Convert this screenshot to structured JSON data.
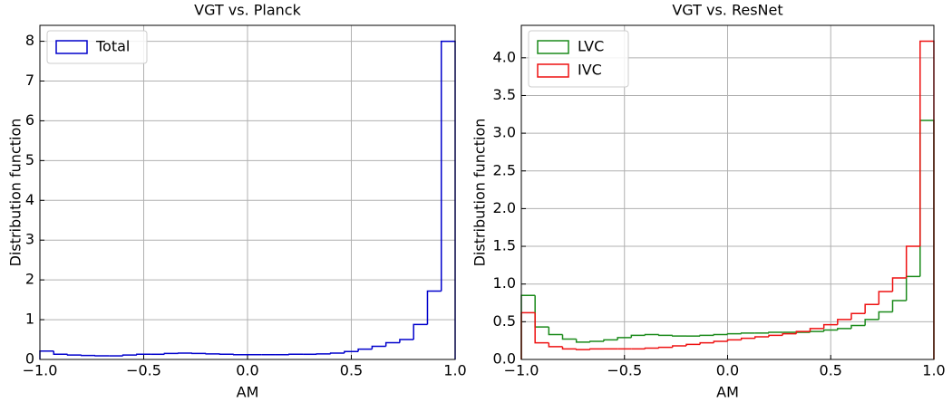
{
  "chart_data": [
    {
      "type": "histogram",
      "title": "VGT vs. Planck",
      "xlabel": "AM",
      "ylabel": "Distribution function",
      "bins": [
        -1,
        -0.9333,
        -0.8667,
        -0.8,
        -0.7333,
        -0.6667,
        -0.6,
        -0.5333,
        -0.4667,
        -0.4,
        -0.3333,
        -0.2667,
        -0.2,
        -0.1333,
        -0.0667,
        0,
        0.0667,
        0.1333,
        0.2,
        0.2667,
        0.3333,
        0.4,
        0.4667,
        0.5333,
        0.6,
        0.6667,
        0.7333,
        0.8,
        0.8667,
        0.9333,
        1
      ],
      "series": [
        {
          "name": "Total",
          "color": "#0000cc",
          "values": [
            0.21,
            0.13,
            0.11,
            0.1,
            0.09,
            0.09,
            0.11,
            0.13,
            0.13,
            0.15,
            0.16,
            0.15,
            0.14,
            0.13,
            0.12,
            0.12,
            0.12,
            0.12,
            0.13,
            0.13,
            0.14,
            0.16,
            0.2,
            0.26,
            0.33,
            0.42,
            0.5,
            0.88,
            1.72,
            8.0
          ]
        }
      ],
      "xlim": [
        -1,
        1
      ],
      "xticks": [
        {
          "value": -1,
          "label": "−1.0"
        },
        {
          "value": -0.5,
          "label": "−0.5"
        },
        {
          "value": 0,
          "label": "0.0"
        },
        0.5,
        {
          "value": 1,
          "label": "1.0"
        }
      ],
      "ylim": [
        0,
        8.4
      ],
      "yticks": [
        0,
        1,
        2,
        3,
        4,
        5,
        6,
        7,
        8
      ],
      "grid": true,
      "legend": "upper left"
    },
    {
      "type": "histogram",
      "title": "VGT vs. ResNet",
      "xlabel": "AM",
      "ylabel": "Distribution function",
      "bins": [
        -1,
        -0.9333,
        -0.8667,
        -0.8,
        -0.7333,
        -0.6667,
        -0.6,
        -0.5333,
        -0.4667,
        -0.4,
        -0.3333,
        -0.2667,
        -0.2,
        -0.1333,
        -0.0667,
        0,
        0.0667,
        0.1333,
        0.2,
        0.2667,
        0.3333,
        0.4,
        0.4667,
        0.5333,
        0.6,
        0.6667,
        0.7333,
        0.8,
        0.8667,
        0.9333,
        1
      ],
      "series": [
        {
          "name": "LVC",
          "color": "#1a8a1a",
          "values": [
            0.85,
            0.43,
            0.33,
            0.27,
            0.23,
            0.24,
            0.26,
            0.29,
            0.32,
            0.33,
            0.32,
            0.31,
            0.31,
            0.32,
            0.33,
            0.34,
            0.35,
            0.35,
            0.36,
            0.36,
            0.36,
            0.37,
            0.39,
            0.41,
            0.45,
            0.53,
            0.63,
            0.78,
            1.1,
            3.17
          ]
        },
        {
          "name": "IVC",
          "color": "#ee1111",
          "values": [
            0.62,
            0.22,
            0.17,
            0.14,
            0.13,
            0.14,
            0.14,
            0.14,
            0.14,
            0.15,
            0.16,
            0.18,
            0.2,
            0.22,
            0.24,
            0.26,
            0.28,
            0.3,
            0.32,
            0.34,
            0.37,
            0.41,
            0.46,
            0.53,
            0.61,
            0.73,
            0.9,
            1.08,
            1.5,
            4.22
          ]
        }
      ],
      "xlim": [
        -1,
        1
      ],
      "xticks": [
        {
          "value": -1,
          "label": "−1.0"
        },
        {
          "value": -0.5,
          "label": "−0.5"
        },
        {
          "value": 0,
          "label": "0.0"
        },
        0.5,
        {
          "value": 1,
          "label": "1.0"
        }
      ],
      "ylim": [
        0,
        4.43
      ],
      "yticks": [
        {
          "value": 0,
          "label": "0.0"
        },
        0.5,
        {
          "value": 1,
          "label": "1.0"
        },
        1.5,
        {
          "value": 2,
          "label": "2.0"
        },
        2.5,
        {
          "value": 3,
          "label": "3.0"
        },
        3.5,
        {
          "value": 4,
          "label": "4.0"
        }
      ],
      "grid": true,
      "legend": "upper left"
    }
  ]
}
